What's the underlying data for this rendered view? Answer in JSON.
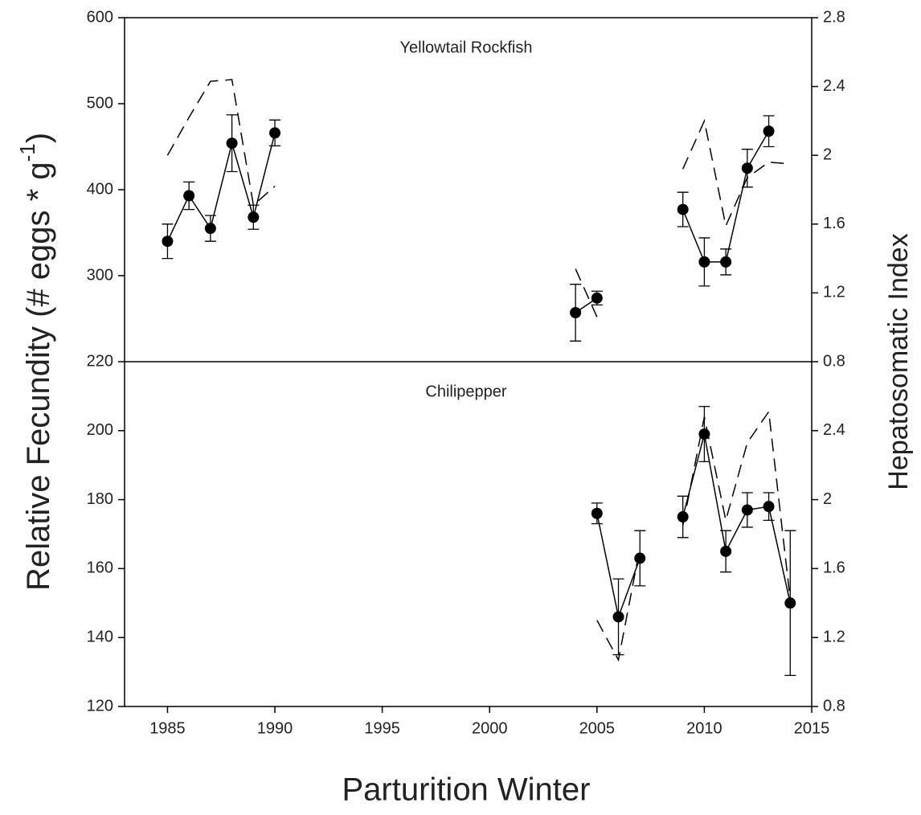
{
  "figure": {
    "xlabel": "Parturition Winter",
    "ylabel": [
      "Relative Fecundity (# eggs * g",
      "-1",
      ")"
    ],
    "y2label": "Hepatosomatic Index"
  },
  "chart_data": [
    {
      "type": "line",
      "title": "Yellowtail Rockfish",
      "x": [
        1985,
        1986,
        1987,
        1988,
        1989,
        1990,
        1991,
        1992,
        1993,
        1994,
        1995,
        1996,
        1997,
        1998,
        1999,
        2000,
        2001,
        2002,
        2003,
        2004,
        2005,
        2006,
        2007,
        2008,
        2009,
        2010,
        2011,
        2012,
        2013,
        2014
      ],
      "xlim": [
        1983,
        2015
      ],
      "ylim": [
        200,
        600
      ],
      "yticks": [
        300,
        400,
        500,
        600
      ],
      "y2lim": [
        0.8,
        2.8
      ],
      "y2ticks": [
        0.8,
        1.2,
        1.6,
        2.0,
        2.4,
        2.8
      ],
      "series": [
        {
          "color": "#000000",
          "style": "solid",
          "marker": "circle",
          "values": [
            340,
            393,
            355,
            454,
            368,
            466,
            null,
            null,
            null,
            null,
            null,
            null,
            null,
            null,
            null,
            null,
            null,
            null,
            null,
            257,
            274,
            null,
            null,
            null,
            377,
            316,
            316,
            425,
            468,
            null
          ],
          "errors": [
            20,
            16,
            15,
            33,
            14,
            15,
            null,
            null,
            null,
            null,
            null,
            null,
            null,
            null,
            null,
            null,
            null,
            null,
            null,
            33,
            8,
            null,
            null,
            null,
            20,
            28,
            15,
            22,
            18,
            null
          ]
        },
        {
          "color": "#000000",
          "style": "dashed",
          "axis": "y2",
          "values": [
            2.0,
            2.22,
            2.43,
            2.44,
            1.71,
            1.82,
            null,
            null,
            null,
            null,
            null,
            null,
            null,
            null,
            null,
            null,
            null,
            null,
            null,
            1.34,
            1.06,
            null,
            null,
            null,
            1.92,
            2.2,
            1.59,
            1.87,
            1.96,
            1.95
          ]
        }
      ]
    },
    {
      "type": "line",
      "title": "Chilipepper",
      "x": [
        2005,
        2006,
        2007,
        2008,
        2009,
        2010,
        2011,
        2012,
        2013,
        2014
      ],
      "xlim": [
        1983,
        2015
      ],
      "xticks": [
        1985,
        1990,
        1995,
        2000,
        2005,
        2010,
        2015
      ],
      "ylim": [
        120,
        220
      ],
      "yticks": [
        120,
        140,
        160,
        180,
        200,
        220
      ],
      "y2lim": [
        0.8,
        2.8
      ],
      "y2ticks": [
        0.8,
        1.2,
        1.6,
        2.0,
        2.4
      ],
      "series": [
        {
          "color": "#000000",
          "style": "solid",
          "marker": "circle",
          "values": [
            176,
            146,
            163,
            null,
            175,
            199,
            165,
            177,
            178,
            150
          ],
          "errors": [
            3,
            11,
            8,
            null,
            6,
            8,
            6,
            5,
            4,
            21
          ]
        },
        {
          "color": "#000000",
          "style": "dashed",
          "axis": "y2",
          "values": [
            1.3,
            1.07,
            1.72,
            null,
            1.85,
            2.48,
            1.88,
            2.33,
            2.51,
            1.42
          ]
        }
      ]
    }
  ]
}
